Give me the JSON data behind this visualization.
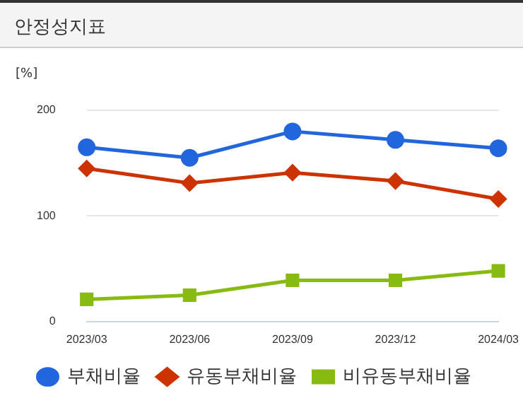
{
  "chart_data": {
    "type": "line",
    "title": "안정성지표",
    "ylabel": "[%]",
    "categories": [
      "2023/03",
      "2023/06",
      "2023/09",
      "2023/12",
      "2024/03"
    ],
    "series": [
      {
        "name": "부채비율",
        "color": "#2266dd",
        "marker": "circle",
        "values": [
          165,
          155,
          180,
          172,
          164
        ]
      },
      {
        "name": "유동부채비율",
        "color": "#cc3300",
        "marker": "diamond",
        "values": [
          145,
          131,
          141,
          133,
          116
        ]
      },
      {
        "name": "비유동부채비율",
        "color": "#88bb11",
        "marker": "square",
        "values": [
          21,
          25,
          39,
          39,
          48
        ]
      }
    ],
    "ylim": [
      0,
      200
    ],
    "yticks": [
      0,
      100,
      200
    ],
    "grid": "y",
    "legend": "bottom",
    "line_style": "solid"
  }
}
